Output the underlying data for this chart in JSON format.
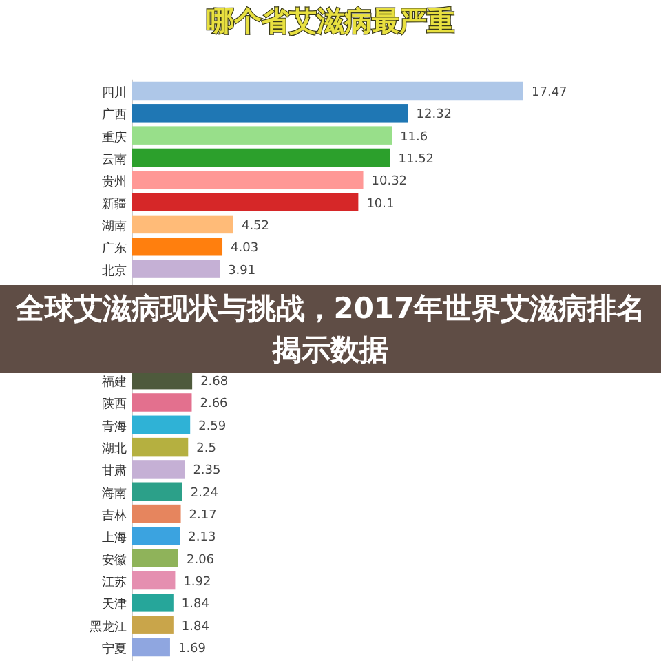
{
  "chart_data": {
    "type": "bar",
    "orientation": "horizontal",
    "title": "哪个省艾滋病最严重",
    "categories": [
      "四川",
      "广西",
      "重庆",
      "云南",
      "贵州",
      "新疆",
      "湖南",
      "广东",
      "北京",
      null,
      null,
      null,
      null,
      "福建",
      "陕西",
      "青海",
      "湖北",
      "甘肃",
      "海南",
      "吉林",
      "上海",
      "安徽",
      "江苏",
      "天津",
      "黑龙江",
      "宁夏"
    ],
    "values": [
      17.47,
      12.32,
      11.6,
      11.52,
      10.32,
      10.1,
      4.52,
      4.03,
      3.91,
      null,
      null,
      null,
      null,
      2.68,
      2.66,
      2.59,
      2.5,
      2.35,
      2.24,
      2.17,
      2.13,
      2.06,
      1.92,
      1.84,
      1.84,
      1.69
    ],
    "colors": [
      "#aec7e8",
      "#1f77b4",
      "#98df8a",
      "#2ca02c",
      "#ff9896",
      "#d62728",
      "#ffbb78",
      "#ff7f0e",
      "#c5b0d5",
      null,
      null,
      null,
      null,
      "#4e5a3c",
      "#e3708e",
      "#2fb2d6",
      "#b5b040",
      "#c5b0d5",
      "#2ca089",
      "#e6855e",
      "#3ba3e0",
      "#8fb35a",
      "#e58fb0",
      "#26a69a",
      "#c9a54a",
      "#8fa6e0"
    ],
    "data_labels": true,
    "annotations": [
      "全球艾滋病现状与挑战，2017年世界艾滋病排名揭示数据"
    ]
  }
}
